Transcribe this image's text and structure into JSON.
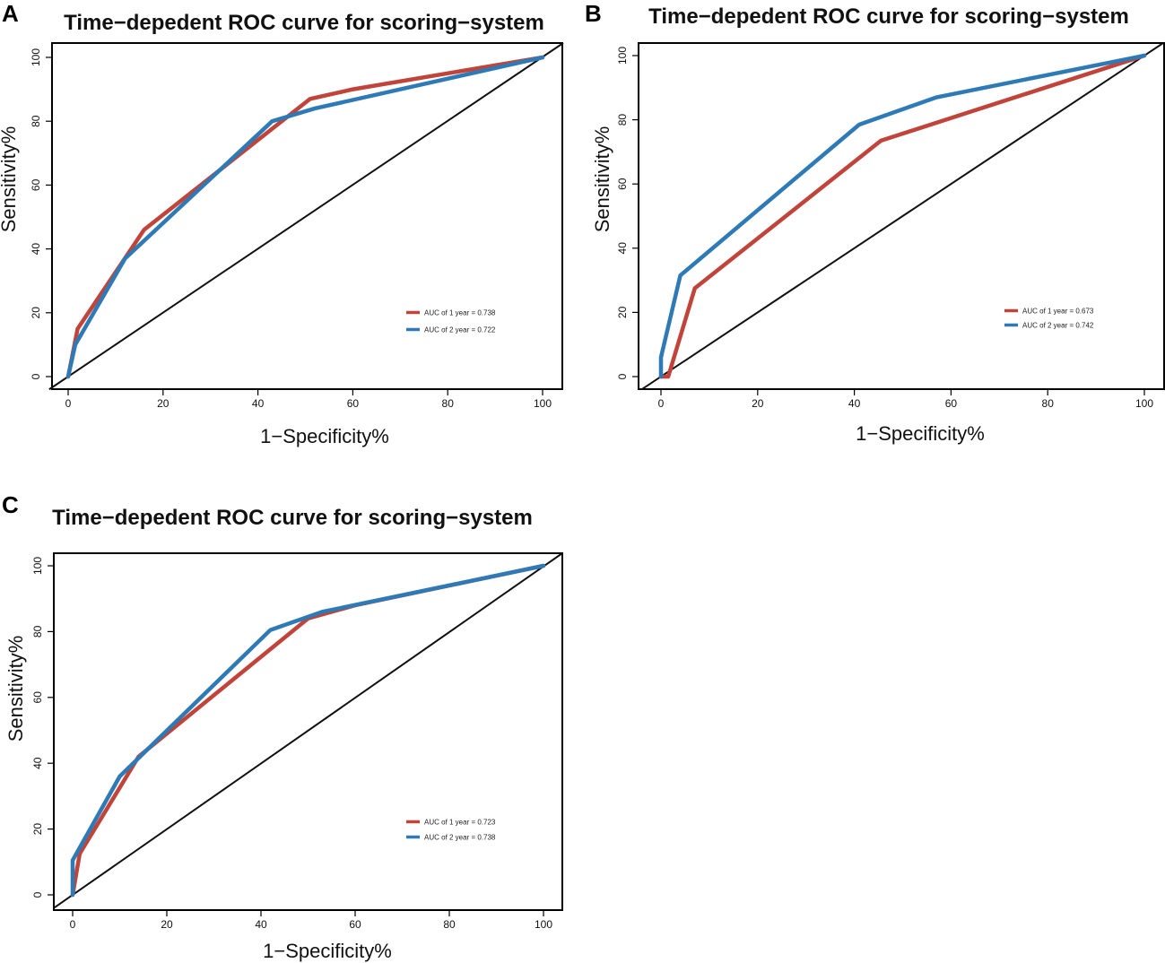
{
  "chart_data": [
    {
      "panel": "A",
      "type": "line",
      "title": "Time−depedent ROC curve for scoring−system",
      "xlabel": "1−Specificity%",
      "ylabel": "Sensitivity%",
      "xlim": [
        0,
        100
      ],
      "ylim": [
        0,
        100
      ],
      "xticks": [
        "0",
        "20",
        "40",
        "60",
        "80",
        "100"
      ],
      "yticks": [
        "0",
        "20",
        "40",
        "60",
        "80",
        "100"
      ],
      "legend_position": "bottom-right",
      "series": [
        {
          "name": "AUC of 1 year = 0.738",
          "color": "#c0443a",
          "x": [
            0,
            2,
            16,
            51,
            60,
            100
          ],
          "y": [
            0,
            15,
            46,
            87,
            90,
            100
          ]
        },
        {
          "name": "AUC of 2 year = 0.722",
          "color": "#2e7ab6",
          "x": [
            0,
            1.5,
            12,
            43,
            52,
            100
          ],
          "y": [
            0,
            10,
            37,
            80,
            84,
            100
          ]
        }
      ]
    },
    {
      "panel": "B",
      "type": "line",
      "title": "Time−depedent ROC curve for scoring−system",
      "xlabel": "1−Specificity%",
      "ylabel": "Sensitivity%",
      "xlim": [
        0,
        100
      ],
      "ylim": [
        0,
        100
      ],
      "xticks": [
        "0",
        "20",
        "40",
        "60",
        "80",
        "100"
      ],
      "yticks": [
        "0",
        "20",
        "40",
        "60",
        "80",
        "100"
      ],
      "legend_position": "bottom-right",
      "series": [
        {
          "name": "AUC of 1 year = 0.673",
          "color": "#c0443a",
          "x": [
            0,
            1.5,
            7,
            45.5,
            100
          ],
          "y": [
            0,
            0,
            27.5,
            73.5,
            100
          ]
        },
        {
          "name": "AUC of 2 year = 0.742",
          "color": "#2e7ab6",
          "x": [
            0,
            0,
            4,
            41,
            57,
            100
          ],
          "y": [
            0,
            6,
            31.5,
            78.5,
            87,
            100
          ]
        }
      ]
    },
    {
      "panel": "C",
      "type": "line",
      "title": "Time−depedent ROC curve for scoring−system",
      "xlabel": "1−Specificity%",
      "ylabel": "Sensitivity%",
      "xlim": [
        0,
        100
      ],
      "ylim": [
        0,
        100
      ],
      "xticks": [
        "0",
        "20",
        "40",
        "60",
        "80",
        "100"
      ],
      "yticks": [
        "0",
        "20",
        "40",
        "60",
        "80",
        "100"
      ],
      "legend_position": "bottom-right",
      "series": [
        {
          "name": "AUC of 1 year = 0.723",
          "color": "#c0443a",
          "x": [
            0,
            1.5,
            14,
            50,
            60,
            100
          ],
          "y": [
            0,
            12.5,
            42,
            84,
            88,
            100
          ]
        },
        {
          "name": "AUC of 2 year = 0.738",
          "color": "#2e7ab6",
          "x": [
            0,
            0,
            10,
            42,
            53,
            100
          ],
          "y": [
            0,
            10.5,
            36,
            80.5,
            86,
            100
          ]
        }
      ]
    }
  ]
}
